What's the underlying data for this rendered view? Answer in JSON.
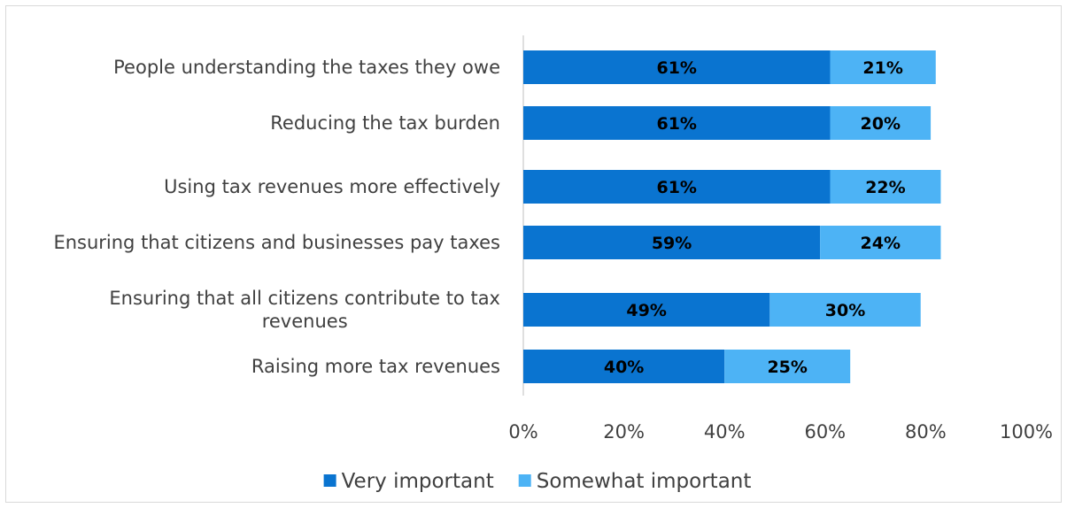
{
  "chart_data": {
    "type": "bar",
    "orientation": "horizontal",
    "stacked": true,
    "categories": [
      "People understanding the taxes they owe",
      "Reducing the tax burden",
      "Using tax revenues more effectively",
      "Ensuring that citizens and businesses pay taxes",
      "Ensuring that all citizens contribute to tax revenues",
      "Raising more tax revenues"
    ],
    "series": [
      {
        "name": "Very important",
        "color": "#0a74d0",
        "values": [
          61,
          61,
          61,
          59,
          49,
          40
        ]
      },
      {
        "name": "Somewhat important",
        "color": "#4db3f5",
        "values": [
          21,
          20,
          22,
          24,
          30,
          25
        ]
      }
    ],
    "data_labels": [
      [
        "61%",
        "61%",
        "61%",
        "59%",
        "49%",
        "40%"
      ],
      [
        "21%",
        "20%",
        "22%",
        "24%",
        "30%",
        "25%"
      ]
    ],
    "xlim": [
      0,
      100
    ],
    "xticks": [
      "0%",
      "20%",
      "40%",
      "60%",
      "80%",
      "100%"
    ],
    "grid": false,
    "legend_position": "bottom"
  }
}
